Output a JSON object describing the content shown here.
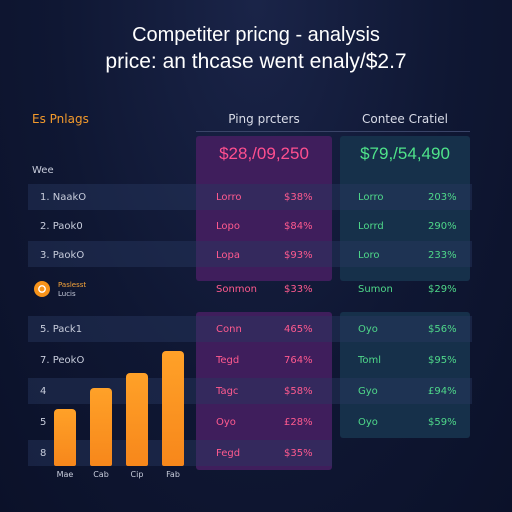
{
  "header": {
    "title": "Competiter pricng - analysis",
    "subtitle": "price: an thcase went enaly/$2.7"
  },
  "columns": {
    "left_label": "Es Pnlags",
    "middle_label": "Ping prcters",
    "right_label": "Contee Cratiel"
  },
  "totals": {
    "middle": "$28,/09,250",
    "right": "$79,/54,490"
  },
  "side_label": "Wee",
  "rows_top": [
    {
      "label": "1. NaakO",
      "m1": "Lorro",
      "m2": "$38%",
      "r1": "Lorro",
      "r2": "203%"
    },
    {
      "label": "2. Paok0",
      "m1": "Lopo",
      "m2": "$84%",
      "r1": "Lorrd",
      "r2": "290%"
    },
    {
      "label": "3. PaokO",
      "m1": "Lopa",
      "m2": "$93%",
      "r1": "Loro",
      "r2": "233%"
    }
  ],
  "summary_row": {
    "badge_line1": "Paslesst",
    "badge_line2": "Lucis",
    "m1": "Sonmon",
    "m2": "$33%",
    "r1": "Sumon",
    "r2": "$29%"
  },
  "rows_bottom": [
    {
      "label": "5. Pack1",
      "m1": "Conn",
      "m2": "465%",
      "r1": "Oyo",
      "r2": "$56%"
    },
    {
      "label": "7. PeokO",
      "m1": "Tegd",
      "m2": "764%",
      "r1": "Toml",
      "r2": "$95%"
    },
    {
      "label": "4",
      "m1": "Tagc",
      "m2": "$58%",
      "r1": "Gyo",
      "r2": "£94%"
    },
    {
      "label": "5",
      "m1": "Oyo",
      "m2": "£28%",
      "r1": "Oyo",
      "r2": "$59%"
    },
    {
      "label": "8",
      "m1": "Fegd",
      "m2": "$35%"
    }
  ],
  "chart_data": {
    "type": "bar",
    "categories": [
      "Mae",
      "Cab",
      "Cip",
      "Fab"
    ],
    "values": [
      34,
      46,
      55,
      68
    ],
    "ylim": [
      0,
      70
    ],
    "colors": [
      "#f7931a"
    ],
    "grid": false
  },
  "theme": {
    "background": "#0f1733",
    "accent_orange": "#f7931a",
    "accent_pink": "#ff4f8f",
    "accent_green": "#4fe38a"
  }
}
